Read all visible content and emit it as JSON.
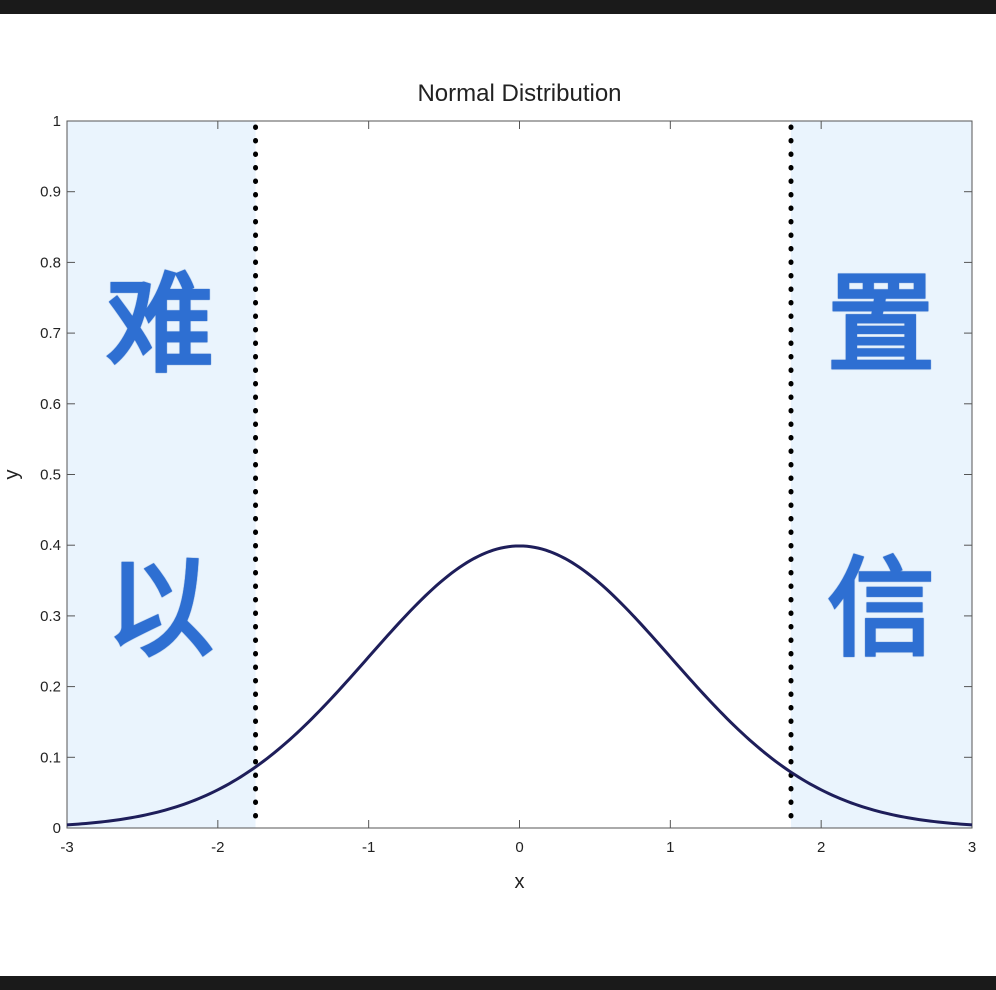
{
  "chart_data": {
    "type": "line",
    "title": "Normal Distribution",
    "xlabel": "x",
    "ylabel": "y",
    "xlim": [
      -3,
      3
    ],
    "ylim": [
      0,
      1
    ],
    "x_ticks": [
      -3,
      -2,
      -1,
      0,
      1,
      2,
      3
    ],
    "y_ticks": [
      0,
      0.1,
      0.2,
      0.3,
      0.4,
      0.5,
      0.6,
      0.7,
      0.8,
      0.9,
      1
    ],
    "x_tick_labels": [
      "-3",
      "-2",
      "-1",
      "0",
      "1",
      "2",
      "3"
    ],
    "y_tick_labels": [
      "0",
      "0.1",
      "0.2",
      "0.3",
      "0.4",
      "0.5",
      "0.6",
      "0.7",
      "0.8",
      "0.9",
      "1"
    ],
    "grid": false,
    "series": [
      {
        "mean": 0,
        "std": 1,
        "x": [
          -3,
          -2.75,
          -2.5,
          -2.25,
          -2,
          -1.75,
          -1.5,
          -1.25,
          -1,
          -0.75,
          -0.5,
          -0.25,
          0,
          0.25,
          0.5,
          0.75,
          1,
          1.25,
          1.5,
          1.75,
          2,
          2.25,
          2.5,
          2.75,
          3
        ],
        "y": [
          0.0044,
          0.0091,
          0.0175,
          0.0317,
          0.054,
          0.0863,
          0.1295,
          0.1826,
          0.242,
          0.3011,
          0.3521,
          0.3867,
          0.3989,
          0.3867,
          0.3521,
          0.3011,
          0.242,
          0.1826,
          0.1295,
          0.0863,
          0.054,
          0.0317,
          0.0175,
          0.0091,
          0.0044
        ]
      }
    ],
    "critical_lines": [
      -1.75,
      1.8
    ],
    "shaded_regions": [
      [
        -3,
        -1.75
      ],
      [
        1.8,
        3
      ]
    ],
    "colors": {
      "curve": "#1e1e5a",
      "shade": "#eaf4fd",
      "overlay_text": "#2e6fd2"
    }
  },
  "overlay_text": {
    "left_top": "难",
    "left_bottom": "以",
    "right_top": "置",
    "right_bottom": "信"
  }
}
